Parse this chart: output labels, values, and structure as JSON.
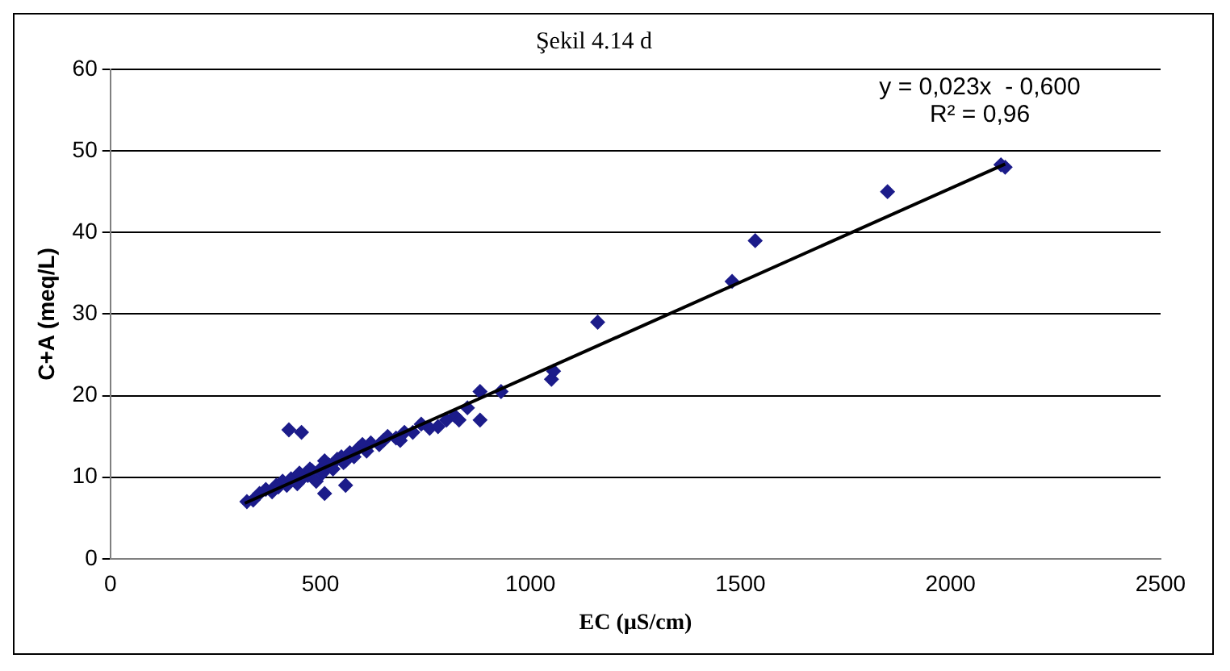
{
  "chart_data": {
    "type": "scatter",
    "title": "Şekil 4.14 d",
    "xlabel": "EC (µS/cm)",
    "ylabel": "C+A (meq/L)",
    "annotations": [
      "y = 0,023x  - 0,600",
      "R² = 0,96"
    ],
    "xlim": [
      0,
      2500
    ],
    "xticks": [
      0,
      500,
      1000,
      1500,
      2000,
      2500
    ],
    "ylim": [
      0,
      60
    ],
    "yticks": [
      0,
      10,
      20,
      30,
      40,
      50,
      60
    ],
    "grid": "y",
    "legend": false,
    "marker": "diamond",
    "series": [
      {
        "type": "scatter",
        "color": "#1c1c8a",
        "x": [
          325,
          340,
          355,
          370,
          385,
          395,
          400,
          410,
          420,
          430,
          445,
          450,
          460,
          470,
          475,
          480,
          490,
          500,
          505,
          510,
          520,
          530,
          540,
          550,
          555,
          560,
          570,
          580,
          590,
          600,
          610,
          620,
          640,
          650,
          660,
          680,
          690,
          700,
          720,
          740,
          760,
          780,
          800,
          820,
          830,
          850,
          880,
          880,
          930,
          1050,
          1055,
          1160,
          1480,
          1535,
          1850,
          2120,
          2130,
          425,
          455,
          560,
          510
        ],
        "values": [
          7,
          7.2,
          8,
          8.5,
          8.2,
          9,
          8.8,
          9.5,
          9,
          9.8,
          9.2,
          10.5,
          10,
          10.2,
          11,
          10.8,
          9.5,
          11,
          10.5,
          12,
          11.5,
          11,
          12.2,
          12.5,
          11.8,
          12,
          13,
          12.5,
          13.5,
          14,
          13.2,
          14.2,
          14,
          14.5,
          15,
          14.8,
          14.5,
          15.5,
          15.5,
          16.5,
          16,
          16.2,
          17,
          17.5,
          17,
          18.5,
          17,
          20.5,
          20.5,
          22,
          23,
          29,
          34,
          39,
          45,
          48.3,
          48,
          15.8,
          15.5,
          9,
          8
        ]
      },
      {
        "type": "line",
        "color": "#000000",
        "marker": "none",
        "x": [
          320,
          2130
        ],
        "values": [
          6.8,
          48.4
        ]
      }
    ]
  }
}
